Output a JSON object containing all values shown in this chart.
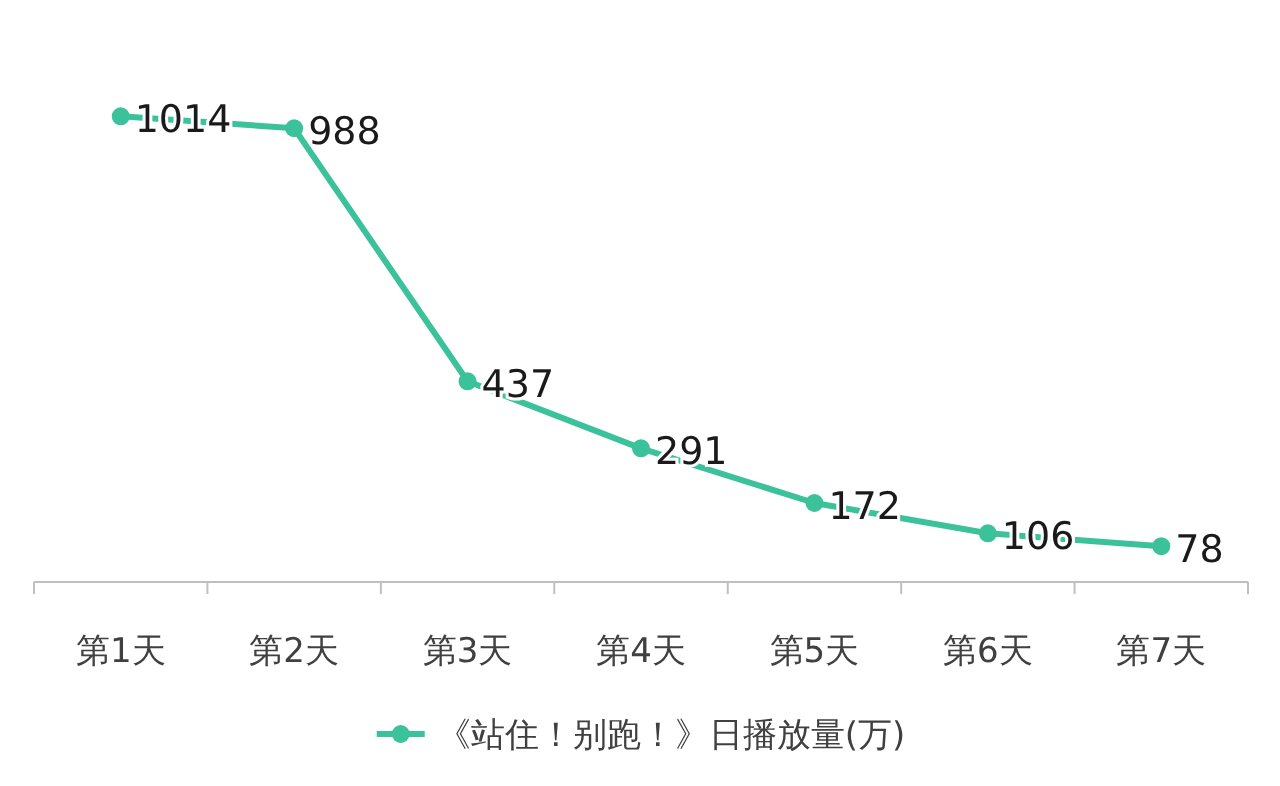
{
  "chart_data": {
    "type": "line",
    "categories": [
      "第1天",
      "第2天",
      "第3天",
      "第4天",
      "第5天",
      "第6天",
      "第7天"
    ],
    "series": [
      {
        "name": "《站住！别跑！》日播放量(万)",
        "color": "#3cc29a",
        "values": [
          1014,
          988,
          437,
          291,
          172,
          106,
          78
        ]
      }
    ],
    "data_labels": true,
    "marker": "circle",
    "legend": "bottom"
  }
}
